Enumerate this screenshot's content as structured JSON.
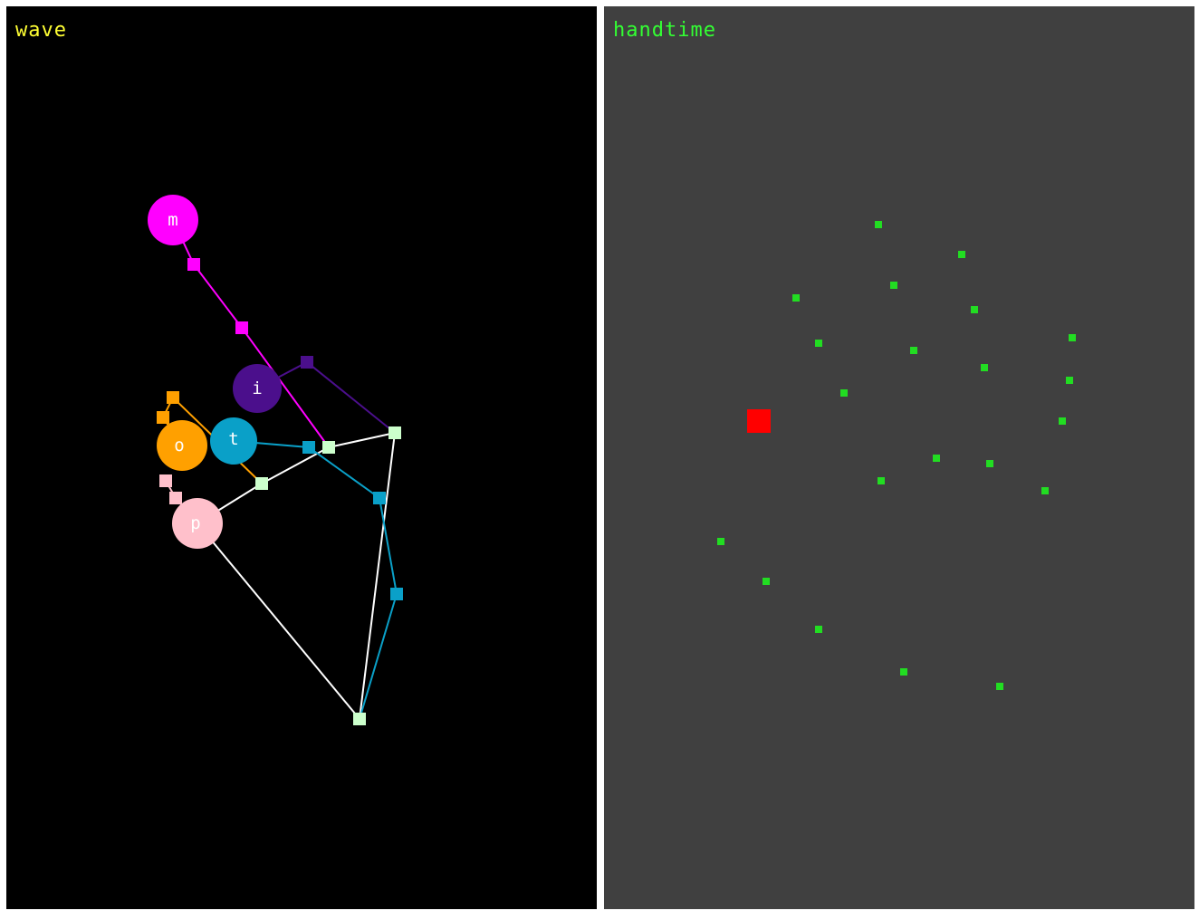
{
  "left_panel": {
    "title": "wave",
    "background": "#000000",
    "title_color": "#ffff33",
    "fingers": [
      {
        "label": "m",
        "color": "#ff00ff"
      },
      {
        "label": "i",
        "color": "#4b0f8c"
      },
      {
        "label": "t",
        "color": "#0aa0c8"
      },
      {
        "label": "o",
        "color": "#ffa000"
      },
      {
        "label": "p",
        "color": "#ffc0cb"
      }
    ],
    "palm_color": "#ffffff",
    "palm_joint_color": "#ccffcc"
  },
  "right_panel": {
    "title": "handtime",
    "background": "#404040",
    "title_color": "#33ff33",
    "point_color": "#22dd22",
    "marker_color": "#ff0000"
  }
}
